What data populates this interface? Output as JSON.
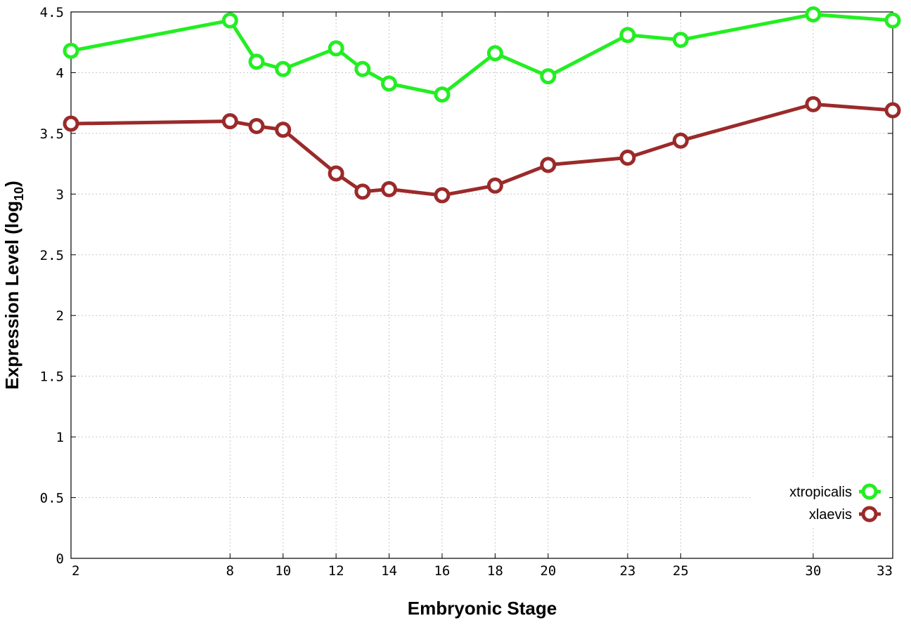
{
  "chart_data": {
    "type": "line",
    "xlabel": "Embryonic Stage",
    "ylabel_main": "Expression Level (log",
    "ylabel_sub": "10",
    "ylabel_end": ")",
    "x": [
      2,
      8,
      9,
      10,
      12,
      13,
      14,
      16,
      18,
      20,
      23,
      25,
      30,
      33
    ],
    "x_tick_labels": [
      "2",
      "8",
      "10",
      "12",
      "14",
      "16",
      "18",
      "20",
      "23",
      "25",
      "30",
      "33"
    ],
    "x_ticks": [
      2,
      8,
      10,
      12,
      14,
      16,
      18,
      20,
      23,
      25,
      30,
      33
    ],
    "y_ticks": [
      0,
      0.5,
      1,
      1.5,
      2,
      2.5,
      3,
      3.5,
      4,
      4.5
    ],
    "y_tick_labels": [
      "0",
      "0.5",
      "1",
      "1.5",
      "2",
      "2.5",
      "3",
      "3.5",
      "4",
      "4.5"
    ],
    "xlim": [
      2,
      33
    ],
    "ylim": [
      0,
      4.5
    ],
    "grid": true,
    "legend_position": "bottom-right",
    "series": [
      {
        "name": "xtropicalis",
        "color": "#22ee22",
        "values": [
          4.18,
          4.43,
          4.09,
          4.03,
          4.2,
          4.03,
          3.91,
          3.82,
          4.16,
          3.97,
          4.31,
          4.27,
          4.48,
          4.43
        ]
      },
      {
        "name": "xlaevis",
        "color": "#9b2a2a",
        "values": [
          3.58,
          3.6,
          3.56,
          3.53,
          3.17,
          3.02,
          3.04,
          2.99,
          3.07,
          3.24,
          3.3,
          3.44,
          3.74,
          3.69
        ]
      }
    ]
  }
}
